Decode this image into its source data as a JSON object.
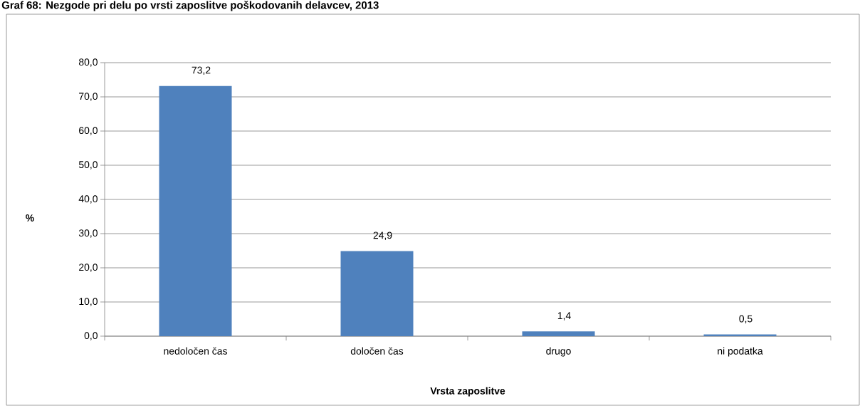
{
  "chart_data": {
    "type": "bar",
    "title": "Graf 68: Nezgode pri delu po vrsti zaposlitve poškodovanih delavcev, 2013",
    "xlabel": "Vrsta zaposlitve",
    "ylabel": "%",
    "categories": [
      "nedoločen čas",
      "določen čas",
      "drugo",
      "ni podatka"
    ],
    "values": [
      73.2,
      24.9,
      1.4,
      0.5
    ],
    "value_labels": [
      "73,2",
      "24,9",
      "1,4",
      "0,5"
    ],
    "color": "#4f81bd",
    "ylim": [
      0,
      80
    ],
    "yticks": [
      {
        "value": 0,
        "label": "0,0"
      },
      {
        "value": 10,
        "label": "10,0"
      },
      {
        "value": 20,
        "label": "20,0"
      },
      {
        "value": 30,
        "label": "30,0"
      },
      {
        "value": 40,
        "label": "40,0"
      },
      {
        "value": 50,
        "label": "50,0"
      },
      {
        "value": 60,
        "label": "60,0"
      },
      {
        "value": 70,
        "label": "70,0"
      },
      {
        "value": 80,
        "label": "80,0"
      }
    ],
    "grid": "y"
  }
}
